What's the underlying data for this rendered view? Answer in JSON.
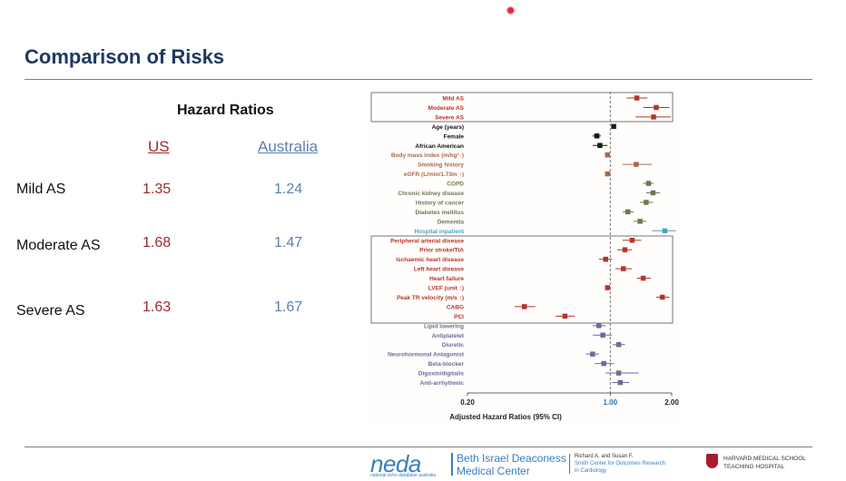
{
  "slide": {
    "title": "Comparison of Risks"
  },
  "table": {
    "heading": "Hazard Ratios",
    "col_us": "US",
    "col_au": "Australia",
    "rows": [
      {
        "label": "Mild AS",
        "us": "1.35",
        "au": "1.24"
      },
      {
        "label": "Moderate AS",
        "us": "1.68",
        "au": "1.47"
      },
      {
        "label": "Severe AS",
        "us": "1.63",
        "au": "1.67"
      }
    ]
  },
  "chart_data": {
    "type": "scatter",
    "xlabel": "Adjusted Hazard Ratios (95% CI)",
    "xscale": "log",
    "xlim": [
      0.2,
      2.0
    ],
    "xticks": [
      "0.20",
      "1.00",
      "2.00"
    ],
    "reference_line": 1.0,
    "items": [
      {
        "label": "Mild AS",
        "hr": 1.35,
        "lo": 1.2,
        "hi": 1.52,
        "group": "as"
      },
      {
        "label": "Moderate AS",
        "hr": 1.68,
        "lo": 1.45,
        "hi": 1.95,
        "group": "as"
      },
      {
        "label": "Severe AS",
        "hr": 1.63,
        "lo": 1.33,
        "hi": 1.98,
        "group": "as"
      },
      {
        "label": "Age (years)",
        "hr": 1.04,
        "lo": 1.02,
        "hi": 1.06,
        "group": "demo"
      },
      {
        "label": "Female",
        "hr": 0.86,
        "lo": 0.82,
        "hi": 0.9,
        "group": "demo"
      },
      {
        "label": "African American",
        "hr": 0.89,
        "lo": 0.82,
        "hi": 0.97,
        "group": "demo"
      },
      {
        "label": "Body mass index (m/kg²↑)",
        "hr": 0.97,
        "lo": 0.95,
        "hi": 0.99,
        "group": "risk"
      },
      {
        "label": "Smoking history",
        "hr": 1.34,
        "lo": 1.15,
        "hi": 1.6,
        "group": "risk"
      },
      {
        "label": "eGFR (L/min/1.73m ↑)",
        "hr": 0.97,
        "lo": 0.96,
        "hi": 0.98,
        "group": "risk"
      },
      {
        "label": "COPD",
        "hr": 1.54,
        "lo": 1.45,
        "hi": 1.63,
        "group": "comorb"
      },
      {
        "label": "Chronic kidney disease",
        "hr": 1.62,
        "lo": 1.5,
        "hi": 1.75,
        "group": "comorb"
      },
      {
        "label": "History of cancer",
        "hr": 1.5,
        "lo": 1.4,
        "hi": 1.62,
        "group": "comorb"
      },
      {
        "label": "Diabetes mellitus",
        "hr": 1.22,
        "lo": 1.15,
        "hi": 1.3,
        "group": "comorb"
      },
      {
        "label": "Dementia",
        "hr": 1.4,
        "lo": 1.3,
        "hi": 1.5,
        "group": "comorb"
      },
      {
        "label": "Hospital inpatient",
        "hr": 1.85,
        "lo": 1.6,
        "hi": 2.1,
        "group": "hosp"
      },
      {
        "label": "Peripheral arterial disease",
        "hr": 1.28,
        "lo": 1.15,
        "hi": 1.42,
        "group": "cardiac"
      },
      {
        "label": "Prior stroke/TIA",
        "hr": 1.18,
        "lo": 1.08,
        "hi": 1.28,
        "group": "cardiac"
      },
      {
        "label": "Ischaemic heart disease",
        "hr": 0.95,
        "lo": 0.88,
        "hi": 1.02,
        "group": "cardiac"
      },
      {
        "label": "Left heart disease",
        "hr": 1.16,
        "lo": 1.06,
        "hi": 1.28,
        "group": "cardiac"
      },
      {
        "label": "Heart failure",
        "hr": 1.45,
        "lo": 1.35,
        "hi": 1.58,
        "group": "cardiac"
      },
      {
        "label": "LVEF (unit ↑)",
        "hr": 0.97,
        "lo": 0.96,
        "hi": 0.98,
        "group": "cardiac"
      },
      {
        "label": "Peak TR velocity (m/s ↑)",
        "hr": 1.8,
        "lo": 1.68,
        "hi": 1.95,
        "group": "cardiac"
      },
      {
        "label": "CABG",
        "hr": 0.38,
        "lo": 0.34,
        "hi": 0.43,
        "group": "cardiac"
      },
      {
        "label": "PCI",
        "hr": 0.6,
        "lo": 0.54,
        "hi": 0.67,
        "group": "cardiac"
      },
      {
        "label": "Lipid lowering",
        "hr": 0.88,
        "lo": 0.82,
        "hi": 0.95,
        "group": "meds"
      },
      {
        "label": "Antiplatelet",
        "hr": 0.92,
        "lo": 0.82,
        "hi": 1.02,
        "group": "meds"
      },
      {
        "label": "Diuretic",
        "hr": 1.1,
        "lo": 1.03,
        "hi": 1.18,
        "group": "meds"
      },
      {
        "label": "Neurohormonal Antagonist",
        "hr": 0.82,
        "lo": 0.76,
        "hi": 0.88,
        "group": "meds"
      },
      {
        "label": "Beta-blocker",
        "hr": 0.93,
        "lo": 0.84,
        "hi": 1.04,
        "group": "meds"
      },
      {
        "label": "Digoxin/digitalis",
        "hr": 1.1,
        "lo": 0.95,
        "hi": 1.38,
        "group": "meds"
      },
      {
        "label": "Anti-arrhythmic",
        "hr": 1.12,
        "lo": 1.02,
        "hi": 1.24,
        "group": "meds"
      }
    ]
  },
  "colors": {
    "title": "#1f3864",
    "us": "#9e2a2b",
    "australia": "#5b7fb3",
    "as": "#b5352a",
    "demo": "#1a1a1a",
    "risk": "#a7694c",
    "comorb": "#6b7a50",
    "hosp": "#4aa3c4",
    "cardiac": "#b5352a",
    "meds": "#6e6a9a"
  },
  "footer": {
    "neda": "neda",
    "neda_sub": "national echo database australia",
    "bi_line1": "Beth Israel Deaconess",
    "bi_line2": "Medical Center",
    "smith_line1": "Richard A. and Susan F.",
    "smith_line2": "Smith Center for Outcomes Research",
    "smith_line3": "in Cardiology",
    "hms_line1": "HARVARD MEDICAL SCHOOL",
    "hms_line2": "TEACHING HOSPITAL"
  }
}
